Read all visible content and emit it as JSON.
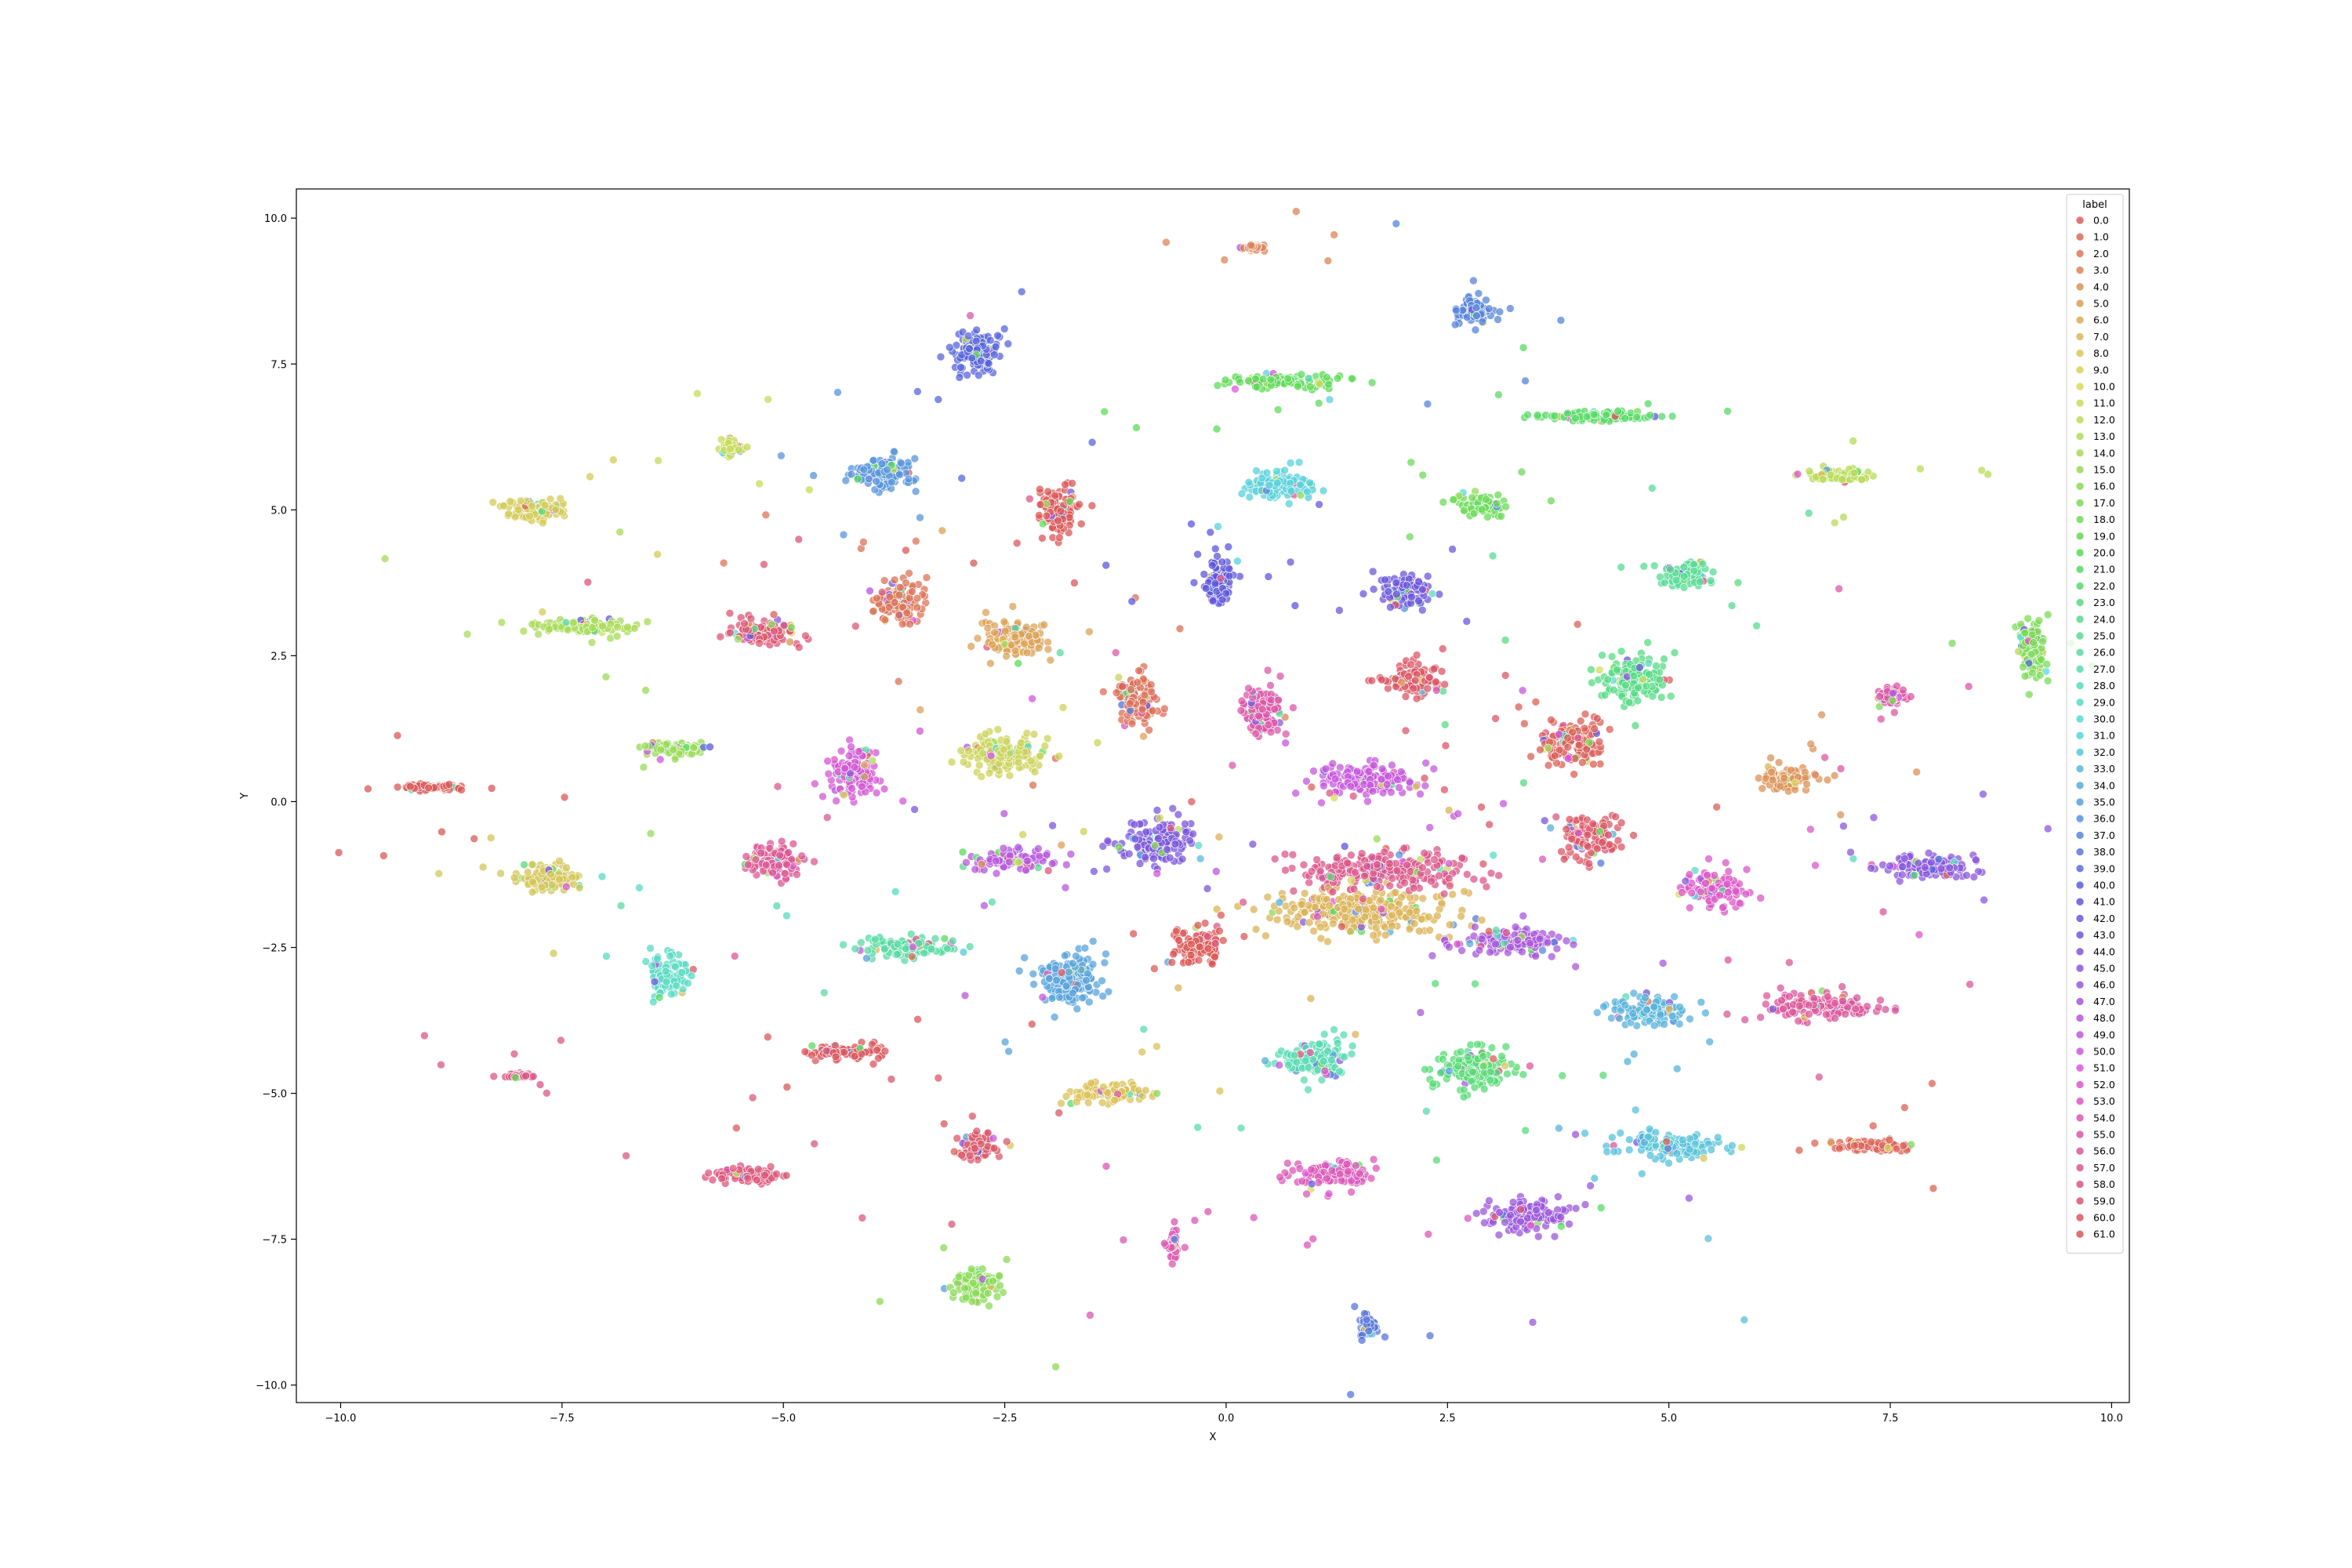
{
  "chart_data": {
    "type": "scatter",
    "xlabel": "X",
    "ylabel": "Y",
    "xlim": [
      -10.5,
      10.2
    ],
    "ylim": [
      -10.3,
      10.5
    ],
    "xticks": [
      -10.0,
      -7.5,
      -5.0,
      -2.5,
      0.0,
      2.5,
      5.0,
      7.5,
      10.0
    ],
    "yticks": [
      -10.0,
      -7.5,
      -5.0,
      -2.5,
      0.0,
      2.5,
      5.0,
      7.5,
      10.0
    ],
    "xtick_labels": [
      "−10.0",
      "−7.5",
      "−5.0",
      "−2.5",
      "0.0",
      "2.5",
      "5.0",
      "7.5",
      "10.0"
    ],
    "ytick_labels": [
      "−10.0",
      "−7.5",
      "−5.0",
      "−2.5",
      "0.0",
      "2.5",
      "5.0",
      "7.5",
      "10.0"
    ],
    "grid": false,
    "legend": {
      "title": "label",
      "placement": "top-right",
      "entries": [
        "0.0",
        "1.0",
        "2.0",
        "3.0",
        "4.0",
        "5.0",
        "6.0",
        "7.0",
        "8.0",
        "9.0",
        "10.0",
        "11.0",
        "12.0",
        "13.0",
        "14.0",
        "15.0",
        "16.0",
        "17.0",
        "18.0",
        "19.0",
        "20.0",
        "21.0",
        "22.0",
        "23.0",
        "24.0",
        "25.0",
        "26.0",
        "27.0",
        "28.0",
        "29.0",
        "30.0",
        "31.0",
        "32.0",
        "33.0",
        "34.0",
        "35.0",
        "36.0",
        "37.0",
        "38.0",
        "39.0",
        "40.0",
        "41.0",
        "42.0",
        "43.0",
        "44.0",
        "45.0",
        "46.0",
        "47.0",
        "48.0",
        "49.0",
        "50.0",
        "51.0",
        "52.0",
        "53.0",
        "54.0",
        "55.0",
        "56.0",
        "57.0",
        "58.0",
        "59.0",
        "60.0",
        "61.0"
      ]
    },
    "clusters": [
      {
        "label": "0.0",
        "center": [
          3.9,
          1.0
        ],
        "spread": [
          0.35,
          0.35
        ],
        "dominant_color": "#db5f57"
      },
      {
        "label": "2.0",
        "center": [
          -1.0,
          1.7
        ],
        "spread": [
          0.2,
          0.4
        ],
        "dominant_color": "#db6f57"
      },
      {
        "label": "3.0",
        "center": [
          -3.7,
          3.4
        ],
        "spread": [
          0.25,
          0.3
        ],
        "dominant_color": "#db7357"
      },
      {
        "label": "4.0",
        "center": [
          0.3,
          9.5
        ],
        "spread": [
          0.1,
          0.04
        ],
        "dominant_color": "#db8457"
      },
      {
        "label": "5.0",
        "center": [
          6.3,
          0.4
        ],
        "spread": [
          0.25,
          0.2
        ],
        "dominant_color": "#db9357"
      },
      {
        "label": "6.0",
        "center": [
          -2.4,
          2.8
        ],
        "spread": [
          0.35,
          0.3
        ],
        "dominant_color": "#dba357"
      },
      {
        "label": "7.0",
        "center": [
          1.5,
          -1.9
        ],
        "spread": [
          1.0,
          0.35
        ],
        "dominant_color": "#dbb357"
      },
      {
        "label": "8.0",
        "center": [
          -1.3,
          -5.0
        ],
        "spread": [
          0.4,
          0.15
        ],
        "dominant_color": "#dbc257"
      },
      {
        "label": "9.0",
        "center": [
          -7.7,
          -1.3
        ],
        "spread": [
          0.3,
          0.2
        ],
        "dominant_color": "#d3c657"
      },
      {
        "label": "10.0",
        "center": [
          -7.8,
          5.0
        ],
        "spread": [
          0.3,
          0.15
        ],
        "dominant_color": "#d3cb57"
      },
      {
        "label": "11.0",
        "center": [
          -2.5,
          0.8
        ],
        "spread": [
          0.4,
          0.3
        ],
        "dominant_color": "#cbd357"
      },
      {
        "label": "12.0",
        "center": [
          -5.6,
          6.1
        ],
        "spread": [
          0.1,
          0.15
        ],
        "dominant_color": "#c6db57"
      },
      {
        "label": "13.0",
        "center": [
          6.9,
          5.6
        ],
        "spread": [
          0.3,
          0.1
        ],
        "dominant_color": "#b7db57"
      },
      {
        "label": "14.0",
        "center": [
          -7.3,
          3.0
        ],
        "spread": [
          0.6,
          0.12
        ],
        "dominant_color": "#a8db57"
      },
      {
        "label": "15.0",
        "center": [
          -6.2,
          0.9
        ],
        "spread": [
          0.35,
          0.1
        ],
        "dominant_color": "#99db57"
      },
      {
        "label": "16.0",
        "center": [
          -2.8,
          -8.3
        ],
        "spread": [
          0.25,
          0.25
        ],
        "dominant_color": "#89db57"
      },
      {
        "label": "17.0",
        "center": [
          9.1,
          2.6
        ],
        "spread": [
          0.15,
          0.45
        ],
        "dominant_color": "#7adb57"
      },
      {
        "label": "18.0",
        "center": [
          2.9,
          5.1
        ],
        "spread": [
          0.3,
          0.15
        ],
        "dominant_color": "#6bdb57"
      },
      {
        "label": "19.0",
        "center": [
          0.6,
          7.2
        ],
        "spread": [
          0.6,
          0.12
        ],
        "dominant_color": "#5ddb57"
      },
      {
        "label": "20.0",
        "center": [
          4.2,
          6.6
        ],
        "spread": [
          0.6,
          0.08
        ],
        "dominant_color": "#57db66"
      },
      {
        "label": "21.0",
        "center": [
          2.8,
          -4.6
        ],
        "spread": [
          0.45,
          0.3
        ],
        "dominant_color": "#57db75"
      },
      {
        "label": "22.0",
        "center": [
          4.6,
          2.1
        ],
        "spread": [
          0.35,
          0.35
        ],
        "dominant_color": "#57db84"
      },
      {
        "label": "23.0",
        "center": [
          5.2,
          3.9
        ],
        "spread": [
          0.25,
          0.2
        ],
        "dominant_color": "#57db94"
      },
      {
        "label": "24.0",
        "center": [
          -3.6,
          -2.5
        ],
        "spread": [
          0.45,
          0.15
        ],
        "dominant_color": "#57dba3"
      },
      {
        "label": "25.0",
        "center": [
          1.0,
          -4.4
        ],
        "spread": [
          0.35,
          0.3
        ],
        "dominant_color": "#57dbb2"
      },
      {
        "label": "26.0",
        "center": [
          -6.3,
          -3.0
        ],
        "spread": [
          0.2,
          0.35
        ],
        "dominant_color": "#57dbc1"
      },
      {
        "label": "27.0",
        "center": [
          0.6,
          5.4
        ],
        "spread": [
          0.35,
          0.2
        ],
        "dominant_color": "#57d0db"
      },
      {
        "label": "28.0",
        "center": [
          5.0,
          -5.9
        ],
        "spread": [
          0.55,
          0.2
        ],
        "dominant_color": "#57c1db"
      },
      {
        "label": "29.0",
        "center": [
          4.8,
          -3.6
        ],
        "spread": [
          0.4,
          0.2
        ],
        "dominant_color": "#57b2db"
      },
      {
        "label": "30.0",
        "center": [
          -1.8,
          -3.0
        ],
        "spread": [
          0.35,
          0.4
        ],
        "dominant_color": "#57a3db"
      },
      {
        "label": "31.0",
        "center": [
          -3.9,
          5.6
        ],
        "spread": [
          0.3,
          0.25
        ],
        "dominant_color": "#5794db"
      },
      {
        "label": "32.0",
        "center": [
          2.8,
          8.4
        ],
        "spread": [
          0.2,
          0.2
        ],
        "dominant_color": "#5784db"
      },
      {
        "label": "33.0",
        "center": [
          1.6,
          -9.0
        ],
        "spread": [
          0.08,
          0.15
        ],
        "dominant_color": "#5775db"
      },
      {
        "label": "34.0",
        "center": [
          -2.8,
          7.7
        ],
        "spread": [
          0.25,
          0.35
        ],
        "dominant_color": "#5766db"
      },
      {
        "label": "35.0",
        "center": [
          -0.1,
          3.8
        ],
        "spread": [
          0.15,
          0.35
        ],
        "dominant_color": "#5d57db"
      },
      {
        "label": "36.0",
        "center": [
          2.0,
          3.6
        ],
        "spread": [
          0.25,
          0.25
        ],
        "dominant_color": "#6c57db"
      },
      {
        "label": "37.0",
        "center": [
          -0.8,
          -0.7
        ],
        "spread": [
          0.4,
          0.35
        ],
        "dominant_color": "#7b57db"
      },
      {
        "label": "38.0",
        "center": [
          7.9,
          -1.1
        ],
        "spread": [
          0.5,
          0.18
        ],
        "dominant_color": "#8a57db"
      },
      {
        "label": "39.0",
        "center": [
          3.4,
          -7.1
        ],
        "spread": [
          0.45,
          0.25
        ],
        "dominant_color": "#9957db"
      },
      {
        "label": "40.0",
        "center": [
          3.2,
          -2.4
        ],
        "spread": [
          0.6,
          0.18
        ],
        "dominant_color": "#a857db"
      },
      {
        "label": "41.0",
        "center": [
          -2.4,
          -1.0
        ],
        "spread": [
          0.45,
          0.15
        ],
        "dominant_color": "#b757db"
      },
      {
        "label": "42.0",
        "center": [
          1.6,
          0.4
        ],
        "spread": [
          0.5,
          0.25
        ],
        "dominant_color": "#c657db"
      },
      {
        "label": "43.0",
        "center": [
          -4.2,
          0.5
        ],
        "spread": [
          0.25,
          0.4
        ],
        "dominant_color": "#d357d3"
      },
      {
        "label": "44.0",
        "center": [
          5.5,
          -1.5
        ],
        "spread": [
          0.3,
          0.25
        ],
        "dominant_color": "#db57c6"
      },
      {
        "label": "45.0",
        "center": [
          1.2,
          -6.4
        ],
        "spread": [
          0.4,
          0.2
        ],
        "dominant_color": "#db57b7"
      },
      {
        "label": "46.0",
        "center": [
          0.4,
          1.5
        ],
        "spread": [
          0.2,
          0.4
        ],
        "dominant_color": "#db57a8"
      },
      {
        "label": "47.0",
        "center": [
          6.7,
          -3.5
        ],
        "spread": [
          0.55,
          0.2
        ],
        "dominant_color": "#db5799"
      },
      {
        "label": "48.0",
        "center": [
          1.8,
          -1.2
        ],
        "spread": [
          0.9,
          0.3
        ],
        "dominant_color": "#db578a"
      },
      {
        "label": "49.0",
        "center": [
          -5.4,
          -6.4
        ],
        "spread": [
          0.35,
          0.12
        ],
        "dominant_color": "#db577b"
      },
      {
        "label": "50.0",
        "center": [
          -2.8,
          -5.9
        ],
        "spread": [
          0.2,
          0.2
        ],
        "dominant_color": "#db576c"
      },
      {
        "label": "51.0",
        "center": [
          -4.3,
          -4.3
        ],
        "spread": [
          0.4,
          0.12
        ],
        "dominant_color": "#db575d"
      },
      {
        "label": "52.0",
        "center": [
          2.1,
          2.1
        ],
        "spread": [
          0.3,
          0.25
        ],
        "dominant_color": "#db5766"
      },
      {
        "label": "53.0",
        "center": [
          -5.2,
          2.9
        ],
        "spread": [
          0.35,
          0.2
        ],
        "dominant_color": "#db5775"
      },
      {
        "label": "54.0",
        "center": [
          -8.0,
          -4.7
        ],
        "spread": [
          0.12,
          0.03
        ],
        "dominant_color": "#db5784"
      },
      {
        "label": "55.0",
        "center": [
          -5.1,
          -1.0
        ],
        "spread": [
          0.3,
          0.25
        ],
        "dominant_color": "#db5794"
      },
      {
        "label": "56.0",
        "center": [
          7.5,
          1.8
        ],
        "spread": [
          0.12,
          0.15
        ],
        "dominant_color": "#db57a3"
      },
      {
        "label": "57.0",
        "center": [
          -0.6,
          -7.6
        ],
        "spread": [
          0.05,
          0.2
        ],
        "dominant_color": "#db57b2"
      },
      {
        "label": "58.0",
        "center": [
          4.1,
          -0.6
        ],
        "spread": [
          0.3,
          0.3
        ],
        "dominant_color": "#db5766"
      },
      {
        "label": "59.0",
        "center": [
          -9.0,
          0.25
        ],
        "spread": [
          0.4,
          0.05
        ],
        "dominant_color": "#db5757"
      },
      {
        "label": "60.0",
        "center": [
          -1.9,
          5.0
        ],
        "spread": [
          0.2,
          0.35
        ],
        "dominant_color": "#db5757"
      },
      {
        "label": "61.0",
        "center": [
          -0.3,
          -2.5
        ],
        "spread": [
          0.25,
          0.3
        ],
        "dominant_color": "#db5a57"
      },
      {
        "label": "1.0",
        "center": [
          7.3,
          -5.9
        ],
        "spread": [
          0.4,
          0.08
        ],
        "dominant_color": "#db6357"
      }
    ]
  }
}
